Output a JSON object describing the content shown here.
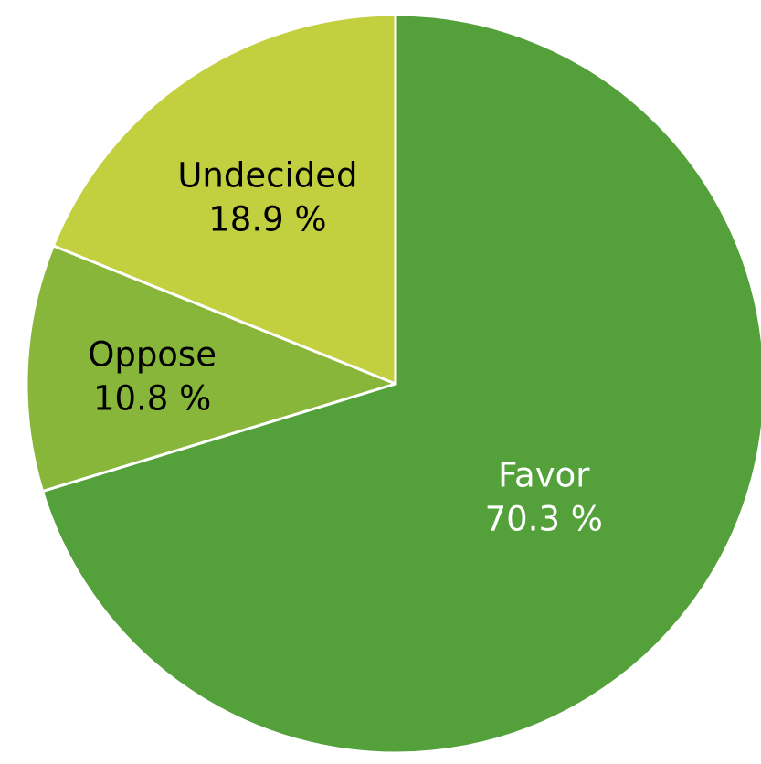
{
  "chart_data": {
    "type": "pie",
    "start_angle_deg": 0,
    "direction": "clockwise",
    "slices": [
      {
        "label": "Favor",
        "value": 70.3,
        "value_label": "70.3 %",
        "color": "#54a03a",
        "text_color": "#ffffff"
      },
      {
        "label": "Oppose",
        "value": 10.8,
        "value_label": "10.8 %",
        "color": "#87b63a",
        "text_color": "#000000"
      },
      {
        "label": "Undecided",
        "value": 18.9,
        "value_label": "18.9 %",
        "color": "#c2cf3e",
        "text_color": "#000000"
      }
    ]
  }
}
